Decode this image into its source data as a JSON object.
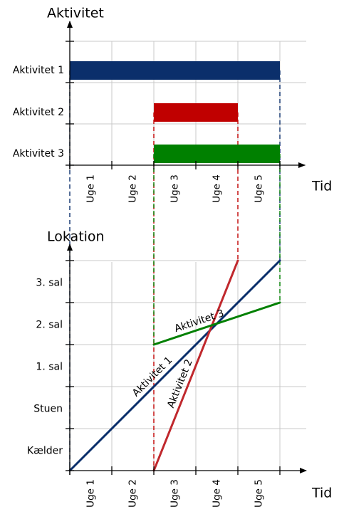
{
  "chart_data": [
    {
      "type": "gantt",
      "ylabel": "Aktivitet",
      "xlabel": "Tid",
      "categories": [
        "Uge 1",
        "Uge 2",
        "Uge 3",
        "Uge 4",
        "Uge 5"
      ],
      "rows": [
        "Aktivitet 1",
        "Aktivitet 2",
        "Aktivitet 3"
      ],
      "xlim": [
        0,
        5
      ],
      "grid": true,
      "tasks": [
        {
          "name": "Aktivitet 1",
          "start": 0,
          "end": 5,
          "color": "#0b2f6b"
        },
        {
          "name": "Aktivitet 2",
          "start": 2,
          "end": 4,
          "color": "#c00000"
        },
        {
          "name": "Aktivitet 3",
          "start": 2,
          "end": 5,
          "color": "#008000"
        }
      ]
    },
    {
      "type": "line",
      "ylabel": "Lokation",
      "xlabel": "Tid",
      "categories": [
        "Uge 1",
        "Uge 2",
        "Uge 3",
        "Uge 4",
        "Uge 5"
      ],
      "yticks": [
        "Kælder",
        "Stuen",
        "1. sal",
        "2. sal",
        "3. sal"
      ],
      "xlim": [
        0,
        5
      ],
      "ylim": [
        0,
        5
      ],
      "grid": true,
      "series": [
        {
          "name": "Aktivitet 1",
          "color": "#0b2f6b",
          "x": [
            0,
            5
          ],
          "y": [
            0,
            5
          ]
        },
        {
          "name": "Aktivitet 2",
          "color": "#c0282d",
          "x": [
            2,
            4
          ],
          "y": [
            0,
            5
          ]
        },
        {
          "name": "Aktivitet 3",
          "color": "#008000",
          "x": [
            2,
            5
          ],
          "y": [
            3,
            4
          ]
        }
      ]
    }
  ]
}
